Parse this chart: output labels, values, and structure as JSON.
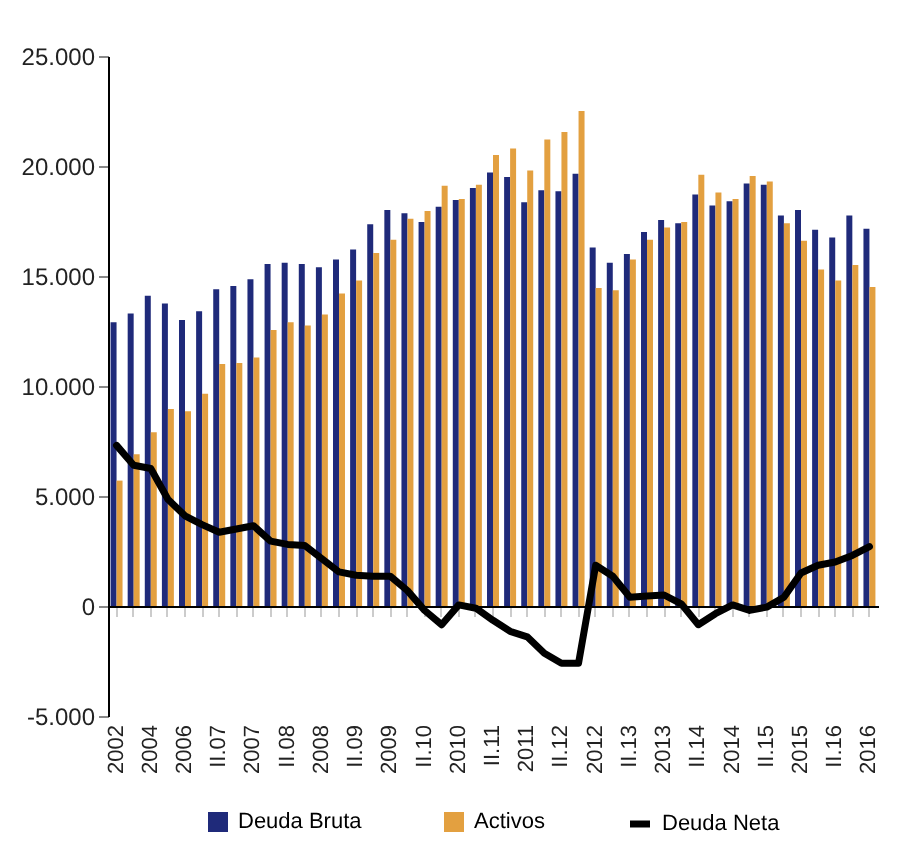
{
  "chart_data": {
    "type": "bar",
    "categories": [
      "2002",
      null,
      "2004",
      null,
      "2006",
      null,
      "II.07",
      null,
      "2007",
      null,
      "II.08",
      null,
      "2008",
      null,
      "II.09",
      null,
      "2009",
      null,
      "II.10",
      null,
      "2010",
      null,
      "II.11",
      null,
      "2011",
      null,
      "II.12",
      null,
      "2012",
      null,
      "II.13",
      null,
      "2013",
      null,
      "II.14",
      null,
      "2014",
      null,
      "II.15",
      null,
      "2015",
      null,
      "II.16",
      null,
      "2016"
    ],
    "series": [
      {
        "name": "Deuda Bruta",
        "color": "#1f2a7a",
        "values": [
          12900,
          13300,
          14100,
          13750,
          13000,
          13400,
          14400,
          14550,
          14850,
          15550,
          15600,
          15550,
          15400,
          15750,
          16200,
          17350,
          18000,
          17850,
          17450,
          18150,
          18450,
          19000,
          19700,
          19500,
          18350,
          18900,
          18850,
          19650,
          16300,
          15600,
          16000,
          17000,
          17550,
          17400,
          18700,
          18200,
          18400,
          19200,
          19150,
          17750,
          18000,
          17100,
          16750,
          17750,
          17150
        ]
      },
      {
        "name": "Activos",
        "color": "#e3a040",
        "values": [
          5700,
          6900,
          7900,
          8950,
          8850,
          9650,
          11000,
          11050,
          11300,
          12550,
          12900,
          12750,
          13250,
          14200,
          14800,
          16050,
          16650,
          17600,
          17950,
          19100,
          18500,
          19150,
          20500,
          20800,
          19800,
          21200,
          21550,
          22500,
          14450,
          14350,
          15750,
          16650,
          17200,
          17450,
          19600,
          18800,
          18500,
          19550,
          19300,
          17400,
          16600,
          15300,
          14800,
          15500,
          14500
        ]
      },
      {
        "name": "Deuda Neta",
        "type": "line",
        "color": "#000000",
        "values": [
          7300,
          6400,
          6250,
          4850,
          4100,
          3700,
          3350,
          3500,
          3650,
          2950,
          2800,
          2750,
          2150,
          1550,
          1400,
          1350,
          1350,
          700,
          -200,
          -850,
          50,
          -100,
          -650,
          -1150,
          -1400,
          -2150,
          -2600,
          -2600,
          1850,
          1350,
          400,
          450,
          500,
          100,
          -850,
          -350,
          50,
          -200,
          -50,
          400,
          1500,
          1850,
          2000,
          2300,
          2700
        ]
      }
    ],
    "ylim": [
      -5000,
      25000
    ],
    "yticks": [
      {
        "value": -5000,
        "label": "-5.000"
      },
      {
        "value": 0,
        "label": "0"
      },
      {
        "value": 5000,
        "label": "5.000"
      },
      {
        "value": 10000,
        "label": "10.000"
      },
      {
        "value": 15000,
        "label": "15.000"
      },
      {
        "value": 20000,
        "label": "20.000"
      },
      {
        "value": 25000,
        "label": "25.000"
      }
    ],
    "legend": "bottom"
  }
}
